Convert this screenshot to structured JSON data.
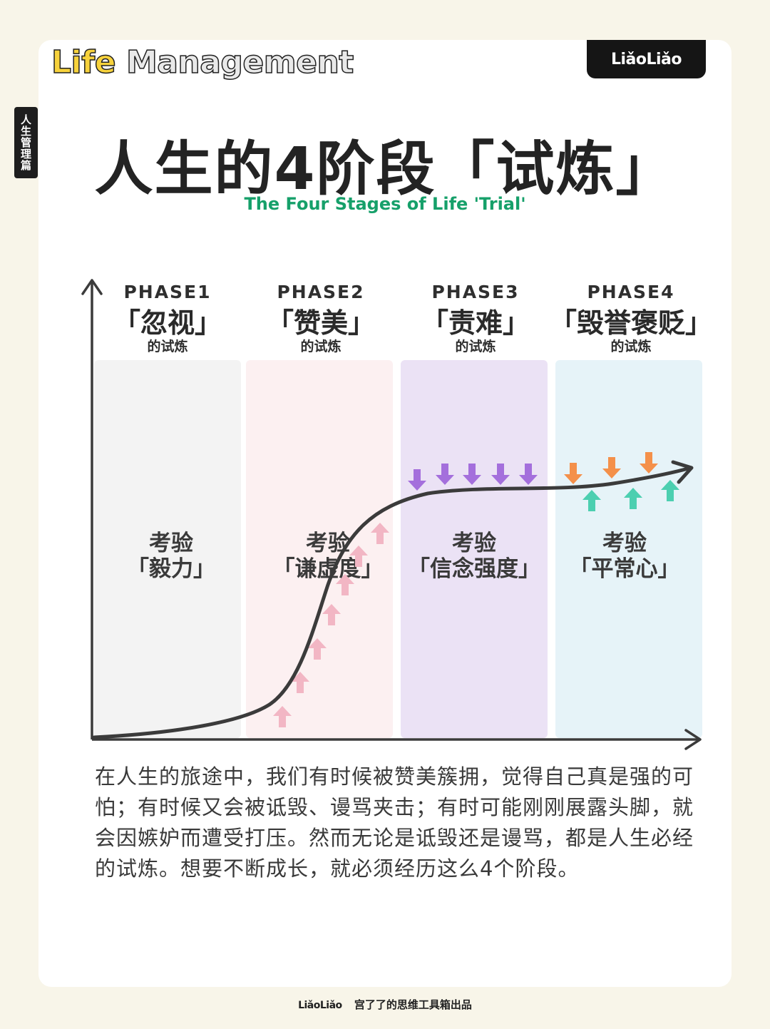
{
  "brand": {
    "title_part1": "Life",
    "title_part2": "Management",
    "logo": "LiǎoLiǎo"
  },
  "side_tab": "人生管理篇",
  "title": "人生的4阶段「试炼」",
  "subtitle": "The Four Stages of Life 'Trial'",
  "phases": [
    {
      "phase": "PHASE1",
      "name": "「忽视」",
      "suffix": "的试炼",
      "test_label": "考验",
      "test": "「毅力」",
      "color": "#f3f3f3"
    },
    {
      "phase": "PHASE2",
      "name": "「赞美」",
      "suffix": "的试炼",
      "test_label": "考验",
      "test": "「谦虚度」",
      "color": "#fcf0f1"
    },
    {
      "phase": "PHASE3",
      "name": "「责难」",
      "suffix": "的试炼",
      "test_label": "考验",
      "test": "「信念强度」",
      "color": "#ebe2f5"
    },
    {
      "phase": "PHASE4",
      "name": "「毁誉褒贬」",
      "suffix": "的试炼",
      "test_label": "考验",
      "test": "「平常心」",
      "color": "#e6f3f8"
    }
  ],
  "arrow_colors": {
    "praise_up": "#f2b6c4",
    "blame_down": "#a46fdc",
    "phase4_down": "#f4904a",
    "phase4_up": "#4ccfb0"
  },
  "body": "在人生的旅途中，我们有时候被赞美簇拥，觉得自己真是强的可怕；有时候又会被诋毁、谩骂夹击；有时可能刚刚展露头脚，就会因嫉妒而遭受打压。然而无论是诋毁还是谩骂，都是人生必经的试炼。想要不断成长，就必须经历这么4个阶段。",
  "footer": {
    "logo": "LiǎoLiǎo",
    "text": "宫了了的思维工具箱出品"
  }
}
